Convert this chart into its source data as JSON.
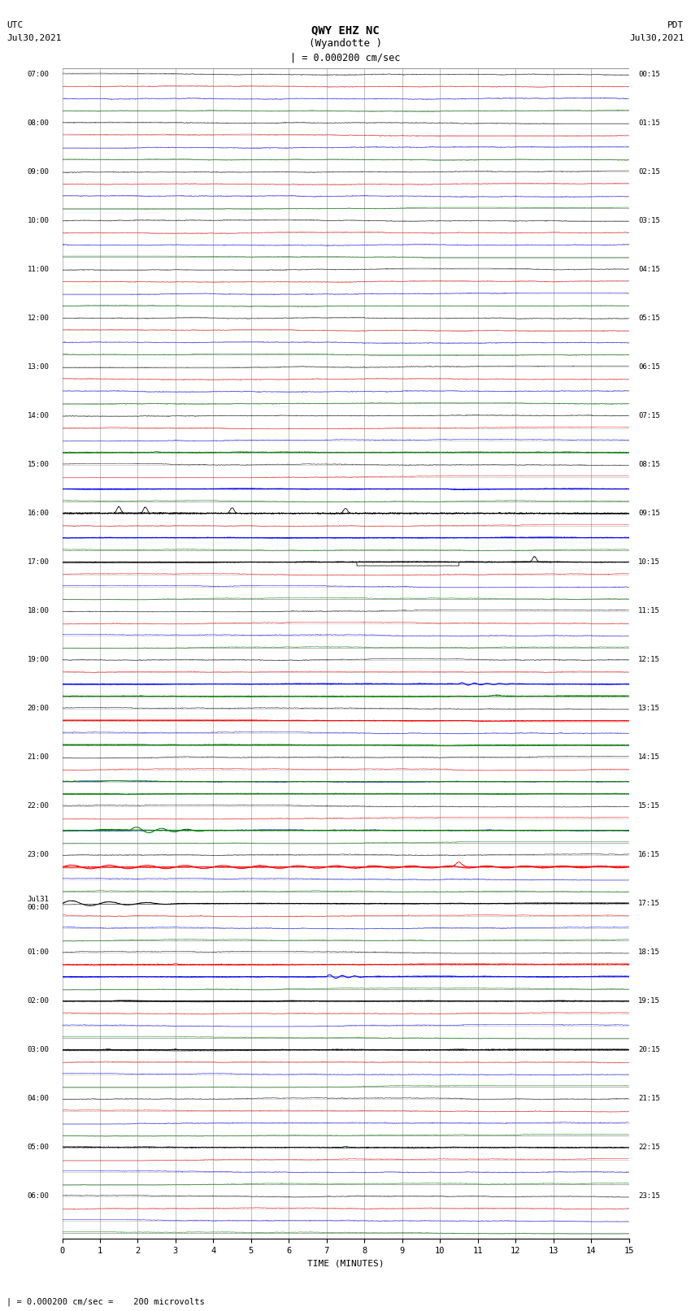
{
  "title_line1": "QWY EHZ NC",
  "title_line2": "(Wyandotte )",
  "scale_label": "| = 0.000200 cm/sec",
  "utc_label_line1": "UTC",
  "utc_label_line2": "Jul30,2021",
  "pdt_label_line1": "PDT",
  "pdt_label_line2": "Jul30,2021",
  "xlabel": "TIME (MINUTES)",
  "footer": "| = 0.000200 cm/sec =    200 microvolts",
  "n_rows": 24,
  "n_traces_per_row": 4,
  "minutes_per_row": 15,
  "background_color": "#ffffff",
  "grid_color": "#808080",
  "trace_colors_per_slot": [
    "black",
    "red",
    "blue",
    "green"
  ],
  "noise_amplitude": 0.03,
  "figsize": [
    8.5,
    16.13
  ],
  "dpi": 100,
  "left_labels": [
    "07:00",
    "",
    "",
    "",
    "08:00",
    "",
    "",
    "",
    "09:00",
    "",
    "",
    "",
    "10:00",
    "",
    "",
    "",
    "11:00",
    "",
    "",
    "",
    "12:00",
    "",
    "",
    "",
    "13:00",
    "",
    "",
    "",
    "14:00",
    "",
    "",
    "",
    "15:00",
    "",
    "",
    "",
    "16:00",
    "",
    "",
    "",
    "17:00",
    "",
    "",
    "",
    "18:00",
    "",
    "",
    "",
    "19:00",
    "",
    "",
    "",
    "20:00",
    "",
    "",
    "",
    "21:00",
    "",
    "",
    "",
    "22:00",
    "",
    "",
    "",
    "23:00",
    "",
    "",
    "",
    "Jul31\n00:00",
    "",
    "",
    "",
    "01:00",
    "",
    "",
    "",
    "02:00",
    "",
    "",
    "",
    "03:00",
    "",
    "",
    "",
    "04:00",
    "",
    "",
    "",
    "05:00",
    "",
    "",
    "",
    "06:00",
    "",
    "",
    ""
  ],
  "right_labels": [
    "00:15",
    "",
    "",
    "",
    "01:15",
    "",
    "",
    "",
    "02:15",
    "",
    "",
    "",
    "03:15",
    "",
    "",
    "",
    "04:15",
    "",
    "",
    "",
    "05:15",
    "",
    "",
    "",
    "06:15",
    "",
    "",
    "",
    "07:15",
    "",
    "",
    "",
    "08:15",
    "",
    "",
    "",
    "09:15",
    "",
    "",
    "",
    "10:15",
    "",
    "",
    "",
    "11:15",
    "",
    "",
    "",
    "12:15",
    "",
    "",
    "",
    "13:15",
    "",
    "",
    "",
    "14:15",
    "",
    "",
    "",
    "15:15",
    "",
    "",
    "",
    "16:15",
    "",
    "",
    "",
    "17:15",
    "",
    "",
    "",
    "18:15",
    "",
    "",
    "",
    "19:15",
    "",
    "",
    "",
    "20:15",
    "",
    "",
    "",
    "21:15",
    "",
    "",
    "",
    "22:15",
    "",
    "",
    "",
    "23:15",
    "",
    "",
    ""
  ]
}
